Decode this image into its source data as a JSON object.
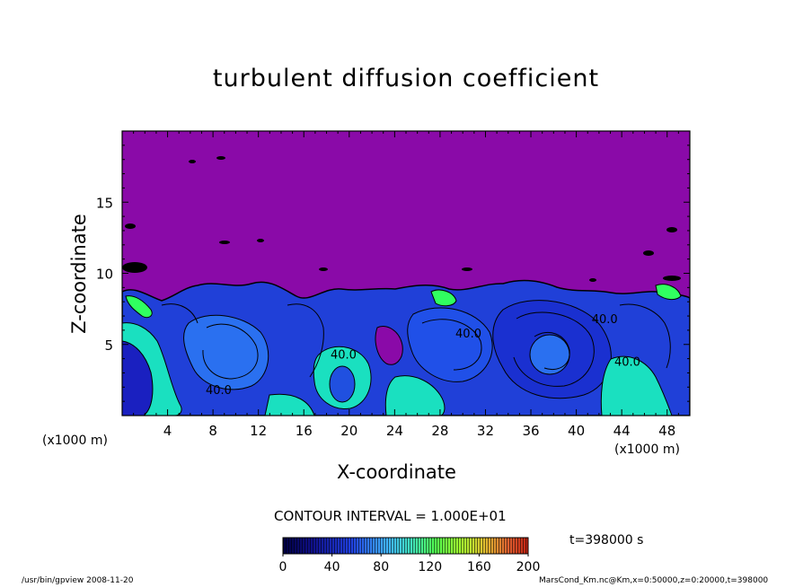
{
  "chart_data": {
    "type": "heatmap",
    "title": "turbulent diffusion coefficient",
    "xlabel": "X-coordinate",
    "ylabel": "Z-coordinate",
    "x_unit_left": "(x1000 m)",
    "x_unit_right": "(x1000 m)",
    "xlim": [
      0,
      50
    ],
    "ylim": [
      0,
      20
    ],
    "x_ticks": [
      4,
      8,
      12,
      16,
      20,
      24,
      28,
      32,
      36,
      40,
      44,
      48
    ],
    "y_ticks": [
      5,
      10,
      15
    ],
    "contour_interval": "CONTOUR INTERVAL = 1.000E+01",
    "contour_labels": [
      {
        "text": "40.0",
        "x": 8.5,
        "z": 1.5
      },
      {
        "text": "40.0",
        "x": 19.5,
        "z": 4.0
      },
      {
        "text": "40.0",
        "x": 30.5,
        "z": 5.5
      },
      {
        "text": "40.0",
        "x": 42.5,
        "z": 6.5
      },
      {
        "text": "40.0",
        "x": 44.5,
        "z": 3.5
      }
    ],
    "colorbar": {
      "ticks": [
        0,
        40,
        80,
        120,
        160,
        200
      ],
      "range": [
        0,
        200
      ]
    },
    "time_label": "t=398000 s"
  },
  "footer": {
    "left": "/usr/bin/gpview   2008-11-20",
    "right": "MarsCond_Km.nc@Km,x=0:50000,z=0:20000,t=398000"
  },
  "colors": {
    "background": "#8a0aa8",
    "low": "#1a1ac8",
    "mid": "#2a60f0",
    "high": "#1ae0c0",
    "peak": "#30ff60"
  }
}
